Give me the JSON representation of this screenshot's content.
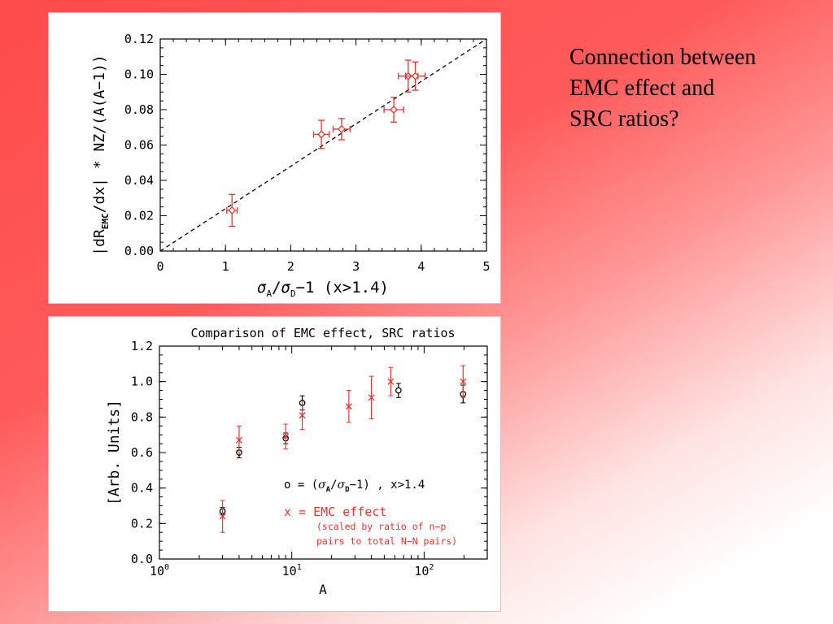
{
  "slide": {
    "title_lines": [
      "Connection between",
      "EMC effect and",
      "SRC ratios?"
    ]
  },
  "chart_data": [
    {
      "type": "scatter",
      "title": "",
      "xlabel": "σA/σD−1 (x>1.4)",
      "ylabel": "|dR_EMC/dx| * NZ/(A(A−1))",
      "xlim": [
        0,
        5
      ],
      "ylim": [
        0,
        0.12
      ],
      "x_ticks": [
        "0",
        "1",
        "2",
        "3",
        "4",
        "5"
      ],
      "y_ticks": [
        "0.00",
        "0.02",
        "0.04",
        "0.06",
        "0.08",
        "0.10",
        "0.12"
      ],
      "series": [
        {
          "marker": "open-diamond",
          "color": "#e8332a",
          "points": [
            {
              "x": 1.1,
              "y": 0.023,
              "xerr": 0.08,
              "yerr": 0.009
            },
            {
              "x": 2.47,
              "y": 0.066,
              "xerr": 0.12,
              "yerr": 0.008
            },
            {
              "x": 2.78,
              "y": 0.069,
              "xerr": 0.13,
              "yerr": 0.006
            },
            {
              "x": 3.58,
              "y": 0.08,
              "xerr": 0.15,
              "yerr": 0.007
            },
            {
              "x": 3.8,
              "y": 0.099,
              "xerr": 0.15,
              "yerr": 0.009
            },
            {
              "x": 3.91,
              "y": 0.099,
              "xerr": 0.15,
              "yerr": 0.008
            }
          ]
        }
      ],
      "fit_line": {
        "style": "dashed",
        "color": "#000000",
        "from": [
          0,
          0
        ],
        "to": [
          5,
          0.12
        ]
      },
      "grid": false
    },
    {
      "type": "scatter",
      "title": "Comparison of EMC effect, SRC ratios",
      "xlabel": "A",
      "ylabel": "[Arb. Units]",
      "xscale": "log",
      "xlim": [
        1,
        300
      ],
      "ylim": [
        0,
        1.2
      ],
      "y_ticks": [
        "0.0",
        "0.2",
        "0.4",
        "0.6",
        "0.8",
        "1.0",
        "1.2"
      ],
      "x_ticks": [
        {
          "base": "10",
          "exp": "0",
          "value": 1
        },
        {
          "base": "10",
          "exp": "1",
          "value": 10
        },
        {
          "base": "10",
          "exp": "2",
          "value": 100
        }
      ],
      "series": [
        {
          "name": "o = (σA/σD−1) , x>1.4",
          "marker": "circle",
          "color": "#000000",
          "points": [
            {
              "x": 3,
              "y": 0.27,
              "yerr": 0.02
            },
            {
              "x": 4,
              "y": 0.6,
              "yerr": 0.03
            },
            {
              "x": 9,
              "y": 0.68,
              "yerr": 0.03
            },
            {
              "x": 12,
              "y": 0.88,
              "yerr": 0.04
            },
            {
              "x": 64,
              "y": 0.95,
              "yerr": 0.04
            },
            {
              "x": 197,
              "y": 0.93,
              "yerr": 0.05
            }
          ]
        },
        {
          "name": "x = EMC effect",
          "marker": "x",
          "color": "#e8332a",
          "points": [
            {
              "x": 3,
              "y": 0.24,
              "yerr": 0.09
            },
            {
              "x": 4,
              "y": 0.67,
              "yerr": 0.08
            },
            {
              "x": 9,
              "y": 0.69,
              "yerr": 0.07
            },
            {
              "x": 12,
              "y": 0.81,
              "yerr": 0.08
            },
            {
              "x": 27,
              "y": 0.86,
              "yerr": 0.09
            },
            {
              "x": 40,
              "y": 0.91,
              "yerr": 0.12
            },
            {
              "x": 56,
              "y": 1.0,
              "yerr": 0.08
            },
            {
              "x": 197,
              "y": 1.0,
              "yerr": 0.09
            }
          ]
        }
      ],
      "legend": {
        "line1": {
          "prefix": "o = (",
          "mid": "/",
          "suffix": "−1) , x>1.4"
        },
        "line2": "x = EMC effect",
        "line3": "(scaled by ratio of n−p",
        "line4": "pairs to total N−N pairs)"
      },
      "grid": false
    }
  ],
  "colors": {
    "accent_red": "#e8332a",
    "axis": "#000000"
  }
}
